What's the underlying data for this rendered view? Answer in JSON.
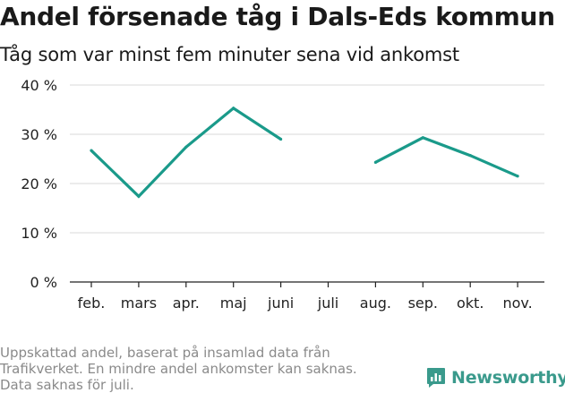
{
  "header": {
    "title": "Andel försenade tåg i Dals-Eds kommun",
    "subtitle": "Tåg som var minst fem minuter sena vid ankomst"
  },
  "footer": {
    "notes": [
      "Uppskattad andel, baserat på insamlad data från",
      "Trafikverket. En mindre andel ankomster kan saknas.",
      "Data saknas för juli."
    ],
    "brand": "Newsworthy",
    "brand_icon": "bar-chart-speech-bubble-icon"
  },
  "colors": {
    "line": "#1a9a8a",
    "grid": "#d9d9d9",
    "axis": "#222222",
    "brand": "#3a9a8c",
    "footnote": "#8a8a8a"
  },
  "chart_data": {
    "type": "line",
    "categories": [
      "feb.",
      "mars",
      "apr.",
      "maj",
      "juni",
      "juli",
      "aug.",
      "sep.",
      "okt.",
      "nov."
    ],
    "series": [
      {
        "values": [
          26.7,
          17.4,
          27.4,
          35.3,
          29.0,
          null,
          24.3,
          29.3,
          25.7,
          21.5
        ]
      }
    ],
    "ylim": [
      0,
      40
    ],
    "yticks": [
      0,
      10,
      20,
      30,
      40
    ],
    "ytick_labels": [
      "0 %",
      "10 %",
      "20 %",
      "30 %",
      "40 %"
    ],
    "xlabel": "",
    "ylabel": "",
    "grid": true
  }
}
